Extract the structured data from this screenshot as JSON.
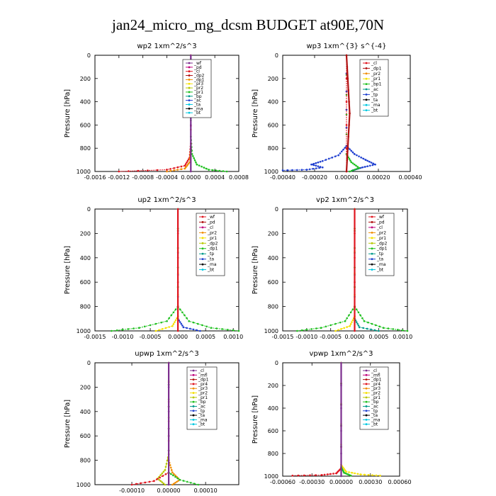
{
  "title": "jan24_micro_mg_dcsm  BUDGET at90E,70N",
  "colors": {
    "purple": "#7b2d8e",
    "magenta": "#c0007a",
    "red": "#e0141e",
    "darkred": "#b01010",
    "orange": "#f08c00",
    "yellow": "#f5e000",
    "olive": "#b8c800",
    "green": "#20c020",
    "teal": "#009a8a",
    "blue": "#2040d0",
    "cyan": "#00c8e0",
    "black": "#000000"
  },
  "chart_data": [
    {
      "id": "wp2",
      "type": "line",
      "title": "wp2   1xm^2/s^3",
      "ylabel": "Pressure  [hPa]",
      "xlim": [
        -0.0016,
        0.0008
      ],
      "ylim": [
        1000,
        0
      ],
      "xticks": [
        -0.0016,
        -0.0012,
        -0.0008,
        -0.0004,
        0.0,
        0.0004,
        0.0008
      ],
      "xtick_labels": [
        "-0.0016",
        "-0.0012",
        "-0.0008",
        "-0.0004",
        "0.0000",
        "0.0004",
        "0.0008"
      ],
      "yticks": [
        0,
        200,
        400,
        600,
        800,
        1000
      ],
      "ytick_labels": [
        "0",
        "200",
        "400",
        "600",
        "800",
        "1000"
      ],
      "legend": [
        {
          "label": "_wf",
          "color": "#7b2d8e"
        },
        {
          "label": "_pd",
          "color": "#c0007a"
        },
        {
          "label": "_cl",
          "color": "#e0141e"
        },
        {
          "label": "_dp2",
          "color": "#b01010"
        },
        {
          "label": "_dp1",
          "color": "#f08c00"
        },
        {
          "label": "_pr3",
          "color": "#f5e000"
        },
        {
          "label": "_pr2",
          "color": "#b8c800"
        },
        {
          "label": "_pr1",
          "color": "#20c020"
        },
        {
          "label": "_bp",
          "color": "#009a8a"
        },
        {
          "label": "_ac",
          "color": "#2040d0"
        },
        {
          "label": "_ta",
          "color": "#00c8e0"
        },
        {
          "label": "_ma",
          "color": "#000000"
        },
        {
          "label": "_bt",
          "color": "#00c8e0"
        }
      ],
      "series": [
        {
          "color": "#20c020",
          "x": [
            0,
            0,
            2e-05,
            0.0001,
            0.0003,
            0.0006
          ],
          "y": [
            0,
            700,
            850,
            940,
            985,
            1000
          ]
        },
        {
          "color": "#e0141e",
          "x": [
            0,
            0,
            -2e-05,
            -0.0001,
            -0.0004,
            -0.0012
          ],
          "y": [
            0,
            760,
            880,
            950,
            985,
            1000
          ]
        },
        {
          "color": "#f08c00",
          "x": [
            0,
            0,
            -2e-05,
            -0.0001,
            -0.0004
          ],
          "y": [
            0,
            800,
            920,
            975,
            1000
          ]
        },
        {
          "color": "#7b2d8e",
          "x": [
            0,
            0
          ],
          "y": [
            0,
            1000
          ]
        }
      ]
    },
    {
      "id": "wp3",
      "type": "line",
      "title": "wp3   1xm^{3} s^{-4}",
      "ylabel": "Pressure  [hPa]",
      "xlim": [
        -0.0004,
        0.0004
      ],
      "ylim": [
        1000,
        0
      ],
      "xticks": [
        -0.0004,
        -0.0002,
        0.0,
        0.0002,
        0.0004
      ],
      "xtick_labels": [
        "-0.00040",
        "-0.00020",
        "0.00000",
        "0.00020",
        "0.00040"
      ],
      "yticks": [
        0,
        200,
        400,
        600,
        800,
        1000
      ],
      "ytick_labels": [
        "0",
        "200",
        "400",
        "600",
        "800",
        "1000"
      ],
      "legend": [
        {
          "label": "_cl",
          "color": "#e0141e"
        },
        {
          "label": "_dp1",
          "color": "#b01010"
        },
        {
          "label": "_pr2",
          "color": "#f08c00"
        },
        {
          "label": "_pr1",
          "color": "#f5e000"
        },
        {
          "label": "_bp1",
          "color": "#20c020"
        },
        {
          "label": "_ac",
          "color": "#009a8a"
        },
        {
          "label": "_tp",
          "color": "#2040d0"
        },
        {
          "label": "_ta",
          "color": "#000000"
        },
        {
          "label": "_ma",
          "color": "#00c8e0"
        },
        {
          "label": "_bt",
          "color": "#00c8e0"
        }
      ],
      "series": [
        {
          "color": "#2040d0",
          "x": [
            0,
            0,
            -5e-05,
            -0.00015,
            -0.00022,
            -0.00015,
            -0.00025,
            -0.0004
          ],
          "y": [
            0,
            780,
            860,
            910,
            940,
            965,
            985,
            990
          ]
        },
        {
          "color": "#2040d0",
          "x": [
            0,
            0,
            5e-05,
            0.00012,
            0.00018,
            0.0001,
            4e-05
          ],
          "y": [
            0,
            780,
            850,
            900,
            940,
            965,
            990
          ]
        },
        {
          "color": "#20c020",
          "x": [
            0,
            0,
            3e-05,
            8e-05,
            2e-05
          ],
          "y": [
            0,
            850,
            920,
            970,
            1000
          ]
        },
        {
          "color": "#e0141e",
          "x": [
            0,
            0
          ],
          "y": [
            0,
            1000
          ]
        },
        {
          "color": "#b01010",
          "x": [
            0,
            2e-05,
            0
          ],
          "y": [
            0,
            500,
            1000
          ]
        }
      ]
    },
    {
      "id": "up2",
      "type": "line",
      "title": "up2   1xm^2/s^3",
      "ylabel": "Pressure  [hPa]",
      "xlim": [
        -0.0015,
        0.0011
      ],
      "ylim": [
        1000,
        0
      ],
      "xticks": [
        -0.0015,
        -0.001,
        -0.0005,
        0.0,
        0.0005,
        0.001
      ],
      "xtick_labels": [
        "-0.0015",
        "-0.0010",
        "-0.0005",
        "0.0000",
        "0.0005",
        "0.0010"
      ],
      "yticks": [
        0,
        200,
        400,
        600,
        800,
        1000
      ],
      "ytick_labels": [
        "0",
        "200",
        "400",
        "600",
        "800",
        "1000"
      ],
      "legend": [
        {
          "label": "_wf",
          "color": "#e0141e"
        },
        {
          "label": "_pd",
          "color": "#b01010"
        },
        {
          "label": "_cl",
          "color": "#c0007a"
        },
        {
          "label": "_pr2",
          "color": "#f08c00"
        },
        {
          "label": "_pr1",
          "color": "#f5e000"
        },
        {
          "label": "_dp2",
          "color": "#b8c800"
        },
        {
          "label": "_dp1",
          "color": "#20c020"
        },
        {
          "label": "_tp",
          "color": "#009a8a"
        },
        {
          "label": "_ta",
          "color": "#2040d0"
        },
        {
          "label": "_ma",
          "color": "#000000"
        },
        {
          "label": "_bt",
          "color": "#00c8e0"
        }
      ],
      "series": [
        {
          "color": "#20c020",
          "x": [
            0,
            0,
            -0.0002,
            -0.0007,
            -0.0012
          ],
          "y": [
            0,
            800,
            920,
            975,
            1000
          ]
        },
        {
          "color": "#20c020",
          "x": [
            0,
            0,
            0.0002,
            0.0006,
            0.0011
          ],
          "y": [
            0,
            800,
            920,
            975,
            1000
          ]
        },
        {
          "color": "#f5e000",
          "x": [
            0,
            0,
            -0.0001,
            -0.0004
          ],
          "y": [
            0,
            880,
            960,
            1000
          ]
        },
        {
          "color": "#2040d0",
          "x": [
            0,
            0,
            0.0001,
            0.0004
          ],
          "y": [
            0,
            900,
            970,
            1000
          ]
        },
        {
          "color": "#e0141e",
          "x": [
            0,
            0
          ],
          "y": [
            0,
            1000
          ]
        }
      ]
    },
    {
      "id": "vp2",
      "type": "line",
      "title": "vp2   1xm^2/s^3",
      "ylabel": "Pressure  [hPa]",
      "xlim": [
        -0.0015,
        0.0011
      ],
      "ylim": [
        1000,
        0
      ],
      "xticks": [
        -0.0015,
        -0.001,
        -0.0005,
        0.0,
        0.0005,
        0.001
      ],
      "xtick_labels": [
        "-0.0015",
        "-0.0010",
        "-0.0005",
        "0.0000",
        "0.0005",
        "0.0010"
      ],
      "yticks": [
        0,
        200,
        400,
        600,
        800,
        1000
      ],
      "ytick_labels": [
        "0",
        "200",
        "400",
        "600",
        "800",
        "1000"
      ],
      "legend": [
        {
          "label": "_wf",
          "color": "#e0141e"
        },
        {
          "label": "_pd",
          "color": "#b01010"
        },
        {
          "label": "_cl",
          "color": "#c0007a"
        },
        {
          "label": "_pr2",
          "color": "#f08c00"
        },
        {
          "label": "_pr1",
          "color": "#f5e000"
        },
        {
          "label": "_dp2",
          "color": "#b8c800"
        },
        {
          "label": "_dp1",
          "color": "#20c020"
        },
        {
          "label": "_tp",
          "color": "#009a8a"
        },
        {
          "label": "_ta",
          "color": "#2040d0"
        },
        {
          "label": "_ma",
          "color": "#000000"
        },
        {
          "label": "_bt",
          "color": "#00c8e0"
        }
      ],
      "series": [
        {
          "color": "#20c020",
          "x": [
            0,
            0,
            -0.0002,
            -0.0007,
            -0.0012
          ],
          "y": [
            0,
            800,
            920,
            975,
            1000
          ]
        },
        {
          "color": "#20c020",
          "x": [
            0,
            0,
            0.0002,
            0.0006,
            0.0011
          ],
          "y": [
            0,
            800,
            920,
            975,
            1000
          ]
        },
        {
          "color": "#f5e000",
          "x": [
            0,
            0,
            -0.0001,
            -0.0004
          ],
          "y": [
            0,
            880,
            960,
            1000
          ]
        },
        {
          "color": "#009a8a",
          "x": [
            0,
            0,
            0.0001,
            0.0005
          ],
          "y": [
            0,
            900,
            970,
            1000
          ]
        },
        {
          "color": "#e0141e",
          "x": [
            0,
            0
          ],
          "y": [
            0,
            1000
          ]
        }
      ]
    },
    {
      "id": "upwp",
      "type": "line",
      "title": "upwp   1xm^2/s^3",
      "ylabel": "Pressure  [hPa]",
      "xlim": [
        -0.0002,
        0.00019
      ],
      "ylim": [
        1000,
        0
      ],
      "xticks": [
        -0.0001,
        0.0,
        0.0001
      ],
      "xtick_labels": [
        "-0.00010",
        "0.00000",
        "0.00010"
      ],
      "yticks": [
        0,
        200,
        400,
        600,
        800,
        1000
      ],
      "ytick_labels": [
        "0",
        "200",
        "400",
        "600",
        "800",
        "1000"
      ],
      "legend": [
        {
          "label": "_cl",
          "color": "#7b2d8e"
        },
        {
          "label": "_mfl",
          "color": "#c0007a"
        },
        {
          "label": "_dp1",
          "color": "#b01010"
        },
        {
          "label": "_pr4",
          "color": "#e0141e"
        },
        {
          "label": "_pr3",
          "color": "#f08c00"
        },
        {
          "label": "_pr2",
          "color": "#f5e000"
        },
        {
          "label": "_pr1",
          "color": "#b8c800"
        },
        {
          "label": "_bp",
          "color": "#20c020"
        },
        {
          "label": "_ac",
          "color": "#009a8a"
        },
        {
          "label": "_tp",
          "color": "#2040d0"
        },
        {
          "label": "_ta",
          "color": "#000000"
        },
        {
          "label": "_ma",
          "color": "#00c8e0"
        },
        {
          "label": "_bt",
          "color": "#00c8e0"
        }
      ],
      "series": [
        {
          "color": "#b8c800",
          "x": [
            0,
            0,
            -1e-05,
            -3e-05,
            -1e-05
          ],
          "y": [
            0,
            750,
            880,
            950,
            1000
          ]
        },
        {
          "color": "#f08c00",
          "x": [
            0,
            0,
            1e-05,
            3e-05,
            1e-05
          ],
          "y": [
            0,
            800,
            900,
            960,
            1000
          ]
        },
        {
          "color": "#e0141e",
          "x": [
            0,
            0,
            -4e-05,
            -0.0001
          ],
          "y": [
            0,
            900,
            970,
            1000
          ]
        },
        {
          "color": "#20c020",
          "x": [
            0,
            0,
            3e-05,
            8e-05
          ],
          "y": [
            0,
            900,
            960,
            1000
          ]
        },
        {
          "color": "#7b2d8e",
          "x": [
            0,
            0
          ],
          "y": [
            0,
            1000
          ]
        }
      ]
    },
    {
      "id": "vpwp",
      "type": "line",
      "title": "vpwp   1xm^2/s^3",
      "ylabel": "Pressure  [hPa]",
      "xlim": [
        -0.0006,
        0.0006
      ],
      "ylim": [
        1000,
        0
      ],
      "xticks": [
        -0.0006,
        -0.0003,
        0.0,
        0.0003,
        0.0006
      ],
      "xtick_labels": [
        "-0.00060",
        "-0.00030",
        "0.00000",
        "0.00030",
        "0.00060"
      ],
      "yticks": [
        0,
        200,
        400,
        600,
        800,
        1000
      ],
      "ytick_labels": [
        "0",
        "200",
        "400",
        "600",
        "800",
        "1000"
      ],
      "legend": [
        {
          "label": "_cl",
          "color": "#7b2d8e"
        },
        {
          "label": "_mfl",
          "color": "#c0007a"
        },
        {
          "label": "_dp1",
          "color": "#b01010"
        },
        {
          "label": "_pr4",
          "color": "#e0141e"
        },
        {
          "label": "_pr3",
          "color": "#f08c00"
        },
        {
          "label": "_pr2",
          "color": "#f5e000"
        },
        {
          "label": "_pr1",
          "color": "#b8c800"
        },
        {
          "label": "_bp",
          "color": "#20c020"
        },
        {
          "label": "_ac",
          "color": "#009a8a"
        },
        {
          "label": "_tp",
          "color": "#2040d0"
        },
        {
          "label": "_ta",
          "color": "#000000"
        },
        {
          "label": "_ma",
          "color": "#00c8e0"
        },
        {
          "label": "_bt",
          "color": "#00c8e0"
        }
      ],
      "series": [
        {
          "color": "#e0141e",
          "x": [
            0,
            0,
            -5e-05,
            -0.0002,
            -0.0005
          ],
          "y": [
            0,
            930,
            975,
            990,
            995
          ]
        },
        {
          "color": "#f5e000",
          "x": [
            0,
            0,
            5e-05,
            0.0002,
            0.0004
          ],
          "y": [
            0,
            900,
            960,
            985,
            995
          ]
        },
        {
          "color": "#20c020",
          "x": [
            0,
            0,
            3e-05,
            0.0001
          ],
          "y": [
            0,
            920,
            970,
            995
          ]
        },
        {
          "color": "#7b2d8e",
          "x": [
            0,
            0
          ],
          "y": [
            0,
            1000
          ]
        }
      ]
    }
  ]
}
